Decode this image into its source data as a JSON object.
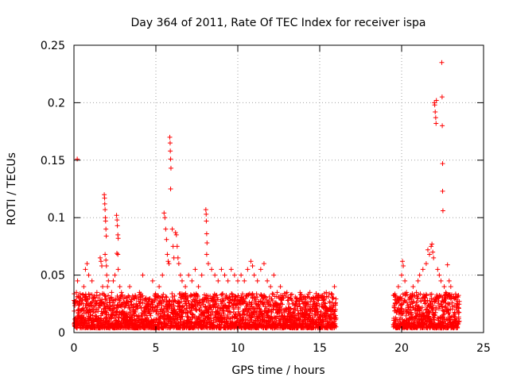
{
  "chart_data": {
    "type": "scatter",
    "title": "Day 364 of 2011, Rate Of TEC Index for receiver ispa",
    "xlabel": "GPS time / hours",
    "ylabel": "ROTI / TECUs",
    "xlim": [
      0,
      25
    ],
    "ylim": [
      0,
      0.25
    ],
    "grid": true,
    "marker": "+",
    "color": "#ff0000",
    "x_ticks": [
      0,
      5,
      10,
      15,
      20,
      25
    ],
    "x_tick_labels": [
      "0",
      "5",
      "10",
      "15",
      "20",
      "25"
    ],
    "y_ticks": [
      0,
      0.05,
      0.1,
      0.15,
      0.2,
      0.25
    ],
    "y_tick_labels": [
      "0",
      "0.05",
      "0.1",
      "0.15",
      "0.2",
      "0.25"
    ],
    "series": [
      {
        "name": "ROTI",
        "points": [
          [
            0.05,
            0.027
          ],
          [
            0.1,
            0.012
          ],
          [
            0.15,
            0.035
          ],
          [
            0.2,
            0.151
          ],
          [
            0.22,
            0.045
          ],
          [
            0.3,
            0.02
          ],
          [
            0.4,
            0.03
          ],
          [
            0.5,
            0.015
          ],
          [
            0.6,
            0.04
          ],
          [
            0.7,
            0.055
          ],
          [
            0.8,
            0.06
          ],
          [
            0.9,
            0.05
          ],
          [
            1.0,
            0.025
          ],
          [
            1.1,
            0.045
          ],
          [
            1.2,
            0.03
          ],
          [
            1.3,
            0.02
          ],
          [
            1.4,
            0.035
          ],
          [
            1.6,
            0.065
          ],
          [
            1.65,
            0.062
          ],
          [
            1.7,
            0.058
          ],
          [
            1.75,
            0.04
          ],
          [
            1.85,
            0.12
          ],
          [
            1.87,
            0.117
          ],
          [
            1.88,
            0.112
          ],
          [
            1.9,
            0.107
          ],
          [
            1.92,
            0.1
          ],
          [
            1.93,
            0.097
          ],
          [
            1.95,
            0.09
          ],
          [
            1.97,
            0.084
          ],
          [
            1.9,
            0.068
          ],
          [
            1.95,
            0.063
          ],
          [
            1.98,
            0.058
          ],
          [
            2.0,
            0.05
          ],
          [
            2.05,
            0.04
          ],
          [
            2.1,
            0.045
          ],
          [
            2.2,
            0.03
          ],
          [
            2.3,
            0.035
          ],
          [
            2.4,
            0.045
          ],
          [
            2.5,
            0.05
          ],
          [
            2.6,
            0.102
          ],
          [
            2.63,
            0.098
          ],
          [
            2.65,
            0.093
          ],
          [
            2.68,
            0.085
          ],
          [
            2.7,
            0.082
          ],
          [
            2.62,
            0.069
          ],
          [
            2.68,
            0.068
          ],
          [
            2.7,
            0.055
          ],
          [
            2.8,
            0.04
          ],
          [
            2.9,
            0.035
          ],
          [
            3.0,
            0.025
          ],
          [
            3.2,
            0.03
          ],
          [
            3.4,
            0.04
          ],
          [
            3.6,
            0.03
          ],
          [
            3.8,
            0.025
          ],
          [
            4.0,
            0.035
          ],
          [
            4.2,
            0.05
          ],
          [
            4.4,
            0.03
          ],
          [
            4.6,
            0.025
          ],
          [
            4.8,
            0.045
          ],
          [
            5.0,
            0.03
          ],
          [
            5.2,
            0.04
          ],
          [
            5.4,
            0.05
          ],
          [
            5.5,
            0.104
          ],
          [
            5.55,
            0.1
          ],
          [
            5.6,
            0.09
          ],
          [
            5.65,
            0.081
          ],
          [
            5.7,
            0.068
          ],
          [
            5.75,
            0.062
          ],
          [
            5.8,
            0.06
          ],
          [
            5.85,
            0.17
          ],
          [
            5.87,
            0.165
          ],
          [
            5.88,
            0.158
          ],
          [
            5.9,
            0.151
          ],
          [
            5.92,
            0.143
          ],
          [
            5.9,
            0.125
          ],
          [
            6.0,
            0.09
          ],
          [
            6.05,
            0.075
          ],
          [
            6.1,
            0.065
          ],
          [
            6.2,
            0.087
          ],
          [
            6.25,
            0.085
          ],
          [
            6.3,
            0.075
          ],
          [
            6.35,
            0.065
          ],
          [
            6.4,
            0.06
          ],
          [
            6.5,
            0.05
          ],
          [
            6.6,
            0.045
          ],
          [
            6.8,
            0.04
          ],
          [
            7.0,
            0.05
          ],
          [
            7.2,
            0.045
          ],
          [
            7.4,
            0.055
          ],
          [
            7.6,
            0.04
          ],
          [
            7.8,
            0.05
          ],
          [
            8.05,
            0.107
          ],
          [
            8.07,
            0.103
          ],
          [
            8.08,
            0.097
          ],
          [
            8.1,
            0.086
          ],
          [
            8.12,
            0.078
          ],
          [
            8.1,
            0.068
          ],
          [
            8.2,
            0.06
          ],
          [
            8.4,
            0.055
          ],
          [
            8.6,
            0.05
          ],
          [
            8.8,
            0.045
          ],
          [
            9.0,
            0.055
          ],
          [
            9.2,
            0.05
          ],
          [
            9.4,
            0.045
          ],
          [
            9.6,
            0.055
          ],
          [
            9.8,
            0.05
          ],
          [
            10.0,
            0.045
          ],
          [
            10.2,
            0.05
          ],
          [
            10.4,
            0.045
          ],
          [
            10.6,
            0.055
          ],
          [
            10.8,
            0.062
          ],
          [
            10.9,
            0.058
          ],
          [
            11.0,
            0.05
          ],
          [
            11.2,
            0.045
          ],
          [
            11.4,
            0.055
          ],
          [
            11.6,
            0.06
          ],
          [
            11.8,
            0.045
          ],
          [
            12.0,
            0.04
          ],
          [
            12.2,
            0.05
          ],
          [
            12.4,
            0.035
          ],
          [
            12.6,
            0.04
          ],
          [
            12.8,
            0.03
          ],
          [
            13.0,
            0.035
          ],
          [
            13.2,
            0.03
          ],
          [
            13.4,
            0.025
          ],
          [
            13.6,
            0.03
          ],
          [
            13.8,
            0.035
          ],
          [
            14.0,
            0.03
          ],
          [
            14.2,
            0.025
          ],
          [
            14.4,
            0.035
          ],
          [
            14.6,
            0.03
          ],
          [
            14.8,
            0.025
          ],
          [
            15.0,
            0.03
          ],
          [
            15.2,
            0.028
          ],
          [
            15.4,
            0.035
          ],
          [
            15.6,
            0.027
          ],
          [
            15.8,
            0.03
          ],
          [
            15.9,
            0.04
          ],
          [
            15.95,
            0.025
          ],
          [
            19.6,
            0.025
          ],
          [
            19.8,
            0.04
          ],
          [
            20.0,
            0.05
          ],
          [
            20.05,
            0.062
          ],
          [
            20.1,
            0.058
          ],
          [
            20.2,
            0.045
          ],
          [
            20.3,
            0.035
          ],
          [
            20.5,
            0.03
          ],
          [
            20.7,
            0.04
          ],
          [
            20.9,
            0.035
          ],
          [
            21.0,
            0.045
          ],
          [
            21.1,
            0.05
          ],
          [
            21.3,
            0.055
          ],
          [
            21.5,
            0.06
          ],
          [
            21.6,
            0.072
          ],
          [
            21.7,
            0.068
          ],
          [
            21.8,
            0.075
          ],
          [
            21.85,
            0.077
          ],
          [
            21.9,
            0.07
          ],
          [
            21.95,
            0.065
          ],
          [
            22.0,
            0.2
          ],
          [
            22.02,
            0.198
          ],
          [
            22.05,
            0.192
          ],
          [
            22.08,
            0.187
          ],
          [
            22.1,
            0.182
          ],
          [
            22.12,
            0.202
          ],
          [
            22.2,
            0.055
          ],
          [
            22.3,
            0.05
          ],
          [
            22.4,
            0.045
          ],
          [
            22.45,
            0.235
          ],
          [
            22.47,
            0.205
          ],
          [
            22.48,
            0.18
          ],
          [
            22.5,
            0.147
          ],
          [
            22.5,
            0.123
          ],
          [
            22.52,
            0.106
          ],
          [
            22.6,
            0.04
          ],
          [
            22.7,
            0.035
          ],
          [
            22.8,
            0.059
          ],
          [
            22.9,
            0.045
          ],
          [
            23.0,
            0.04
          ],
          [
            23.2,
            0.03
          ],
          [
            23.4,
            0.025
          ]
        ]
      }
    ]
  }
}
